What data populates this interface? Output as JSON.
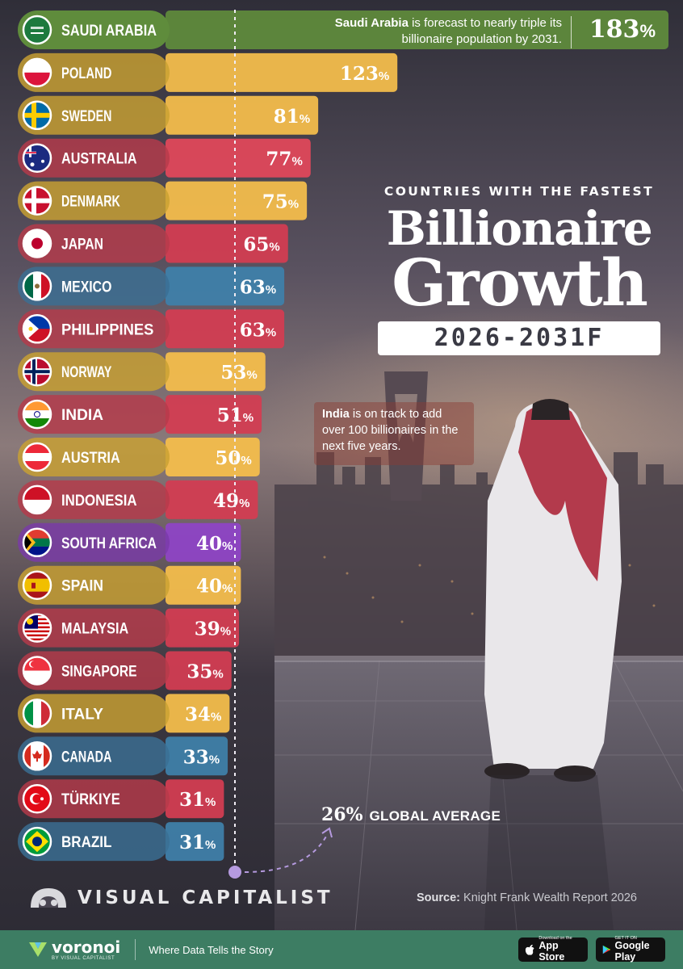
{
  "chart_data": {
    "type": "bar",
    "orientation": "horizontal",
    "categories": [
      "SAUDI ARABIA",
      "POLAND",
      "SWEDEN",
      "AUSTRALIA",
      "DENMARK",
      "JAPAN",
      "MEXICO",
      "PHILIPPINES",
      "NORWAY",
      "INDIA",
      "AUSTRIA",
      "INDONESIA",
      "SOUTH AFRICA",
      "SPAIN",
      "MALAYSIA",
      "SINGAPORE",
      "ITALY",
      "CANADA",
      "TÜRKIYE",
      "BRAZIL"
    ],
    "values": [
      183,
      123,
      81,
      77,
      75,
      65,
      63,
      63,
      53,
      51,
      50,
      49,
      40,
      40,
      39,
      35,
      34,
      33,
      31,
      31
    ],
    "value_labels": [
      "183",
      "123",
      "81",
      "77",
      "75",
      "65",
      "63",
      "63",
      "53",
      "51",
      "50",
      "49",
      "40",
      "40",
      "39",
      "35",
      "34",
      "33",
      "31",
      "31"
    ],
    "value_suffix": "%",
    "bar_colors": [
      "#5f8c3c",
      "#f4bd4b",
      "#f4bd4b",
      "#e0475a",
      "#f4bd4b",
      "#d23d52",
      "#3f7fa9",
      "#d23d52",
      "#f4bd4b",
      "#d23d52",
      "#f4bd4b",
      "#d23d52",
      "#8e44c6",
      "#f4bd4b",
      "#d23d52",
      "#d23d52",
      "#f4bd4b",
      "#3f7fa9",
      "#d23d52",
      "#3f7fa9"
    ],
    "label_colors": [
      "#5f8c3c",
      "#c9a132",
      "#c9a132",
      "#b63a4a",
      "#c9a132",
      "#b63a4a",
      "#3a6f94",
      "#b63a4a",
      "#c9a132",
      "#b63a4a",
      "#c9a132",
      "#b63a4a",
      "#7a3aa8",
      "#c9a132",
      "#b63a4a",
      "#b63a4a",
      "#c9a132",
      "#3a6f94",
      "#b63a4a",
      "#3a6f94"
    ],
    "reference_line": {
      "value": 26,
      "label": "GLOBAL AVERAGE"
    },
    "title": "Billionaire Growth",
    "subtitle": "COUNTRIES WITH THE FASTEST",
    "period": "2026-2031F",
    "legend": "none",
    "grid": false
  },
  "header": {
    "subtitle": "COUNTRIES WITH THE FASTEST",
    "title_line1": "Billionaire",
    "title_line2": "Growth",
    "years": "2026-2031F"
  },
  "callouts": {
    "saudi": {
      "bold": "Saudi Arabia",
      "rest": " is forecast to nearly triple its billionaire population by 2031."
    },
    "india": {
      "bold": "India",
      "rest": " is on track to add over 100 billionaires in the next five years."
    }
  },
  "global_average": {
    "value": "26%",
    "label": "GLOBAL AVERAGE"
  },
  "branding": {
    "name": "VISUAL CAPITALIST"
  },
  "source": {
    "label": "Source:",
    "text": " Knight Frank Wealth Report 2026"
  },
  "footer": {
    "logo": "voronoi",
    "logo_sub": "BY VISUAL CAPITALIST",
    "tagline": "Where Data Tells the Story",
    "app_store_small": "Download on the",
    "app_store": "App Store",
    "google_small": "GET IT ON",
    "google": "Google Play"
  },
  "colors": {
    "background": "#2b2a33",
    "footer": "#3d7d63"
  },
  "icons": [
    "flag-icon",
    "visual-capitalist-logo-icon",
    "voronoi-logo-icon",
    "apple-icon",
    "google-play-icon"
  ]
}
